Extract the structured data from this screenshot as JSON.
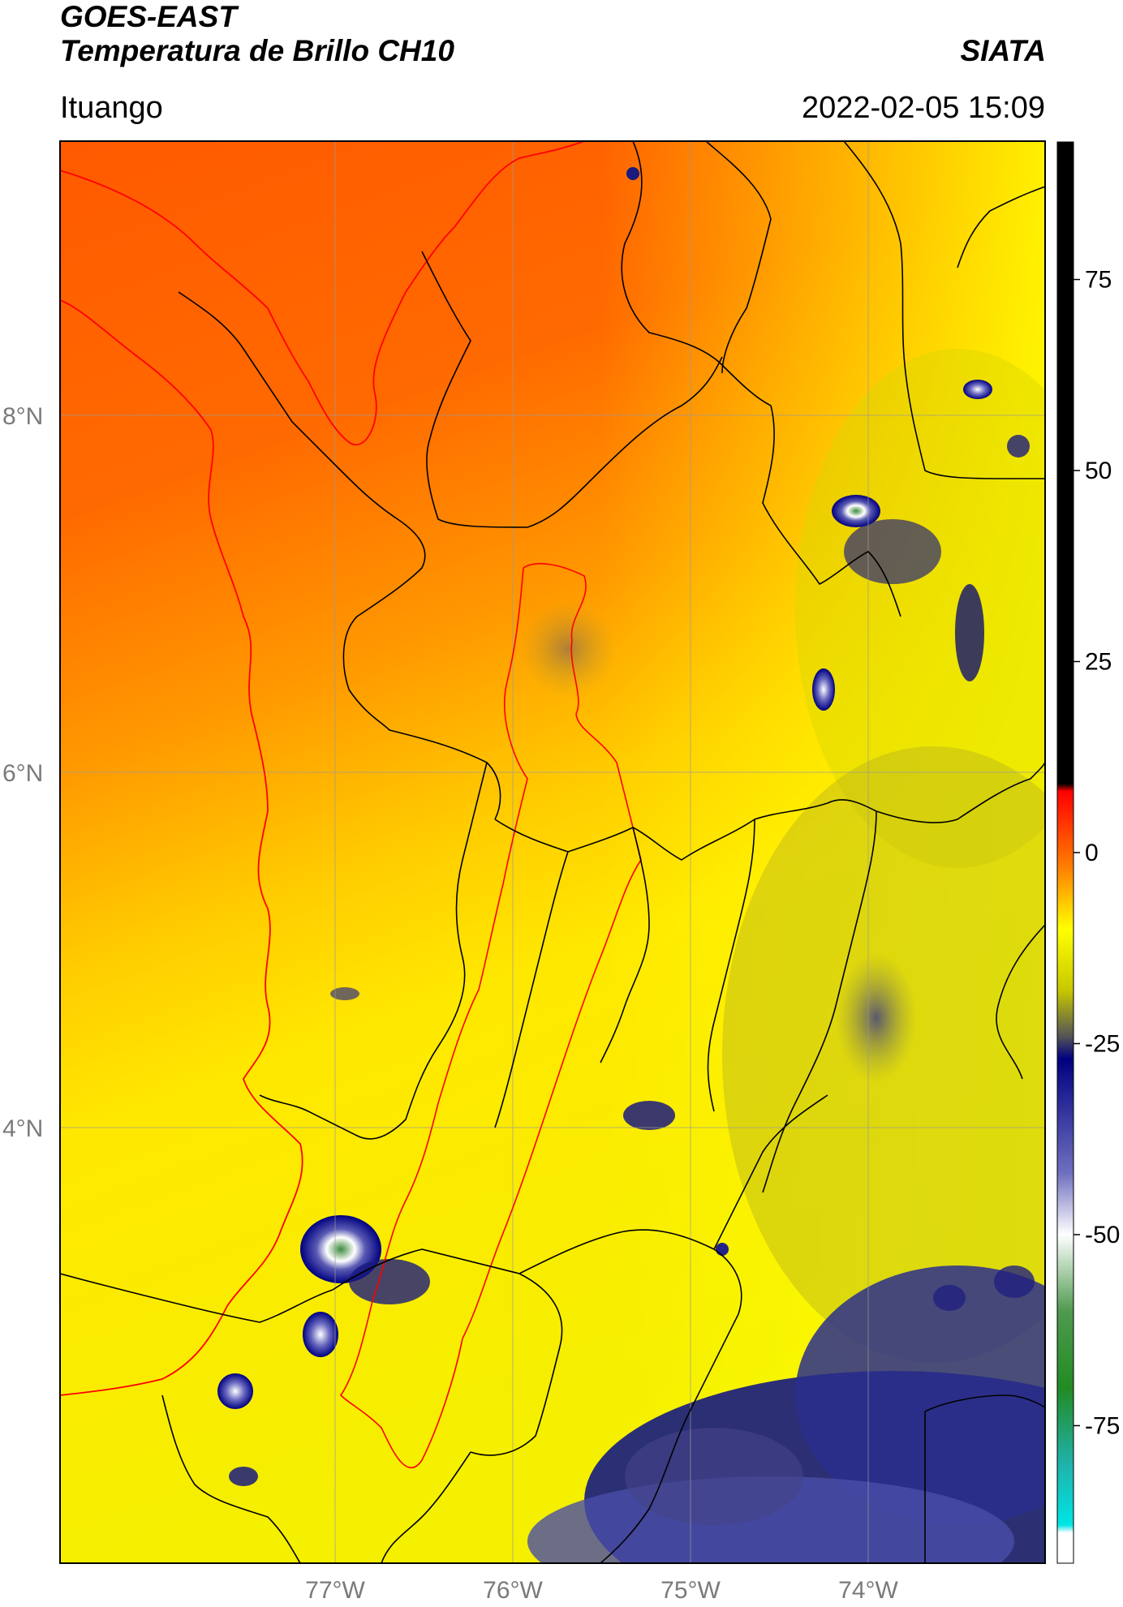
{
  "header": {
    "title_line1": "GOES-EAST",
    "title_line2": "Temperatura de Brillo CH10",
    "brand": "SIATA",
    "location": "Ituango",
    "timestamp": "2022-02-05 15:09"
  },
  "map": {
    "lat_ticks": [
      "8°N",
      "6°N",
      "4°N"
    ],
    "lon_ticks": [
      "77°W",
      "76°W",
      "75°W",
      "74°W"
    ],
    "colors": {
      "border_lines": "#000000",
      "coast_and_watershed": "#ff0000",
      "gridlines": "#999999"
    }
  },
  "colorbar": {
    "ticks": [
      "75",
      "50",
      "25",
      "0",
      "-25",
      "-50",
      "-75"
    ],
    "tick_values": [
      75,
      50,
      25,
      0,
      -25,
      -50,
      -75
    ],
    "range": [
      -93,
      93
    ],
    "stops": [
      {
        "v": 93,
        "c": "#000000"
      },
      {
        "v": 9,
        "c": "#000000"
      },
      {
        "v": 8,
        "c": "#ff0000"
      },
      {
        "v": -2,
        "c": "#ff8000"
      },
      {
        "v": -10,
        "c": "#ffff00"
      },
      {
        "v": -18,
        "c": "#c8c800"
      },
      {
        "v": -24,
        "c": "#555555"
      },
      {
        "v": -27,
        "c": "#000080"
      },
      {
        "v": -42,
        "c": "#7070c0"
      },
      {
        "v": -50,
        "c": "#ffffff"
      },
      {
        "v": -60,
        "c": "#4f9a4f"
      },
      {
        "v": -70,
        "c": "#228b22"
      },
      {
        "v": -80,
        "c": "#20b2aa"
      },
      {
        "v": -88,
        "c": "#00e5e5"
      },
      {
        "v": -89,
        "c": "#ffffff"
      },
      {
        "v": -93,
        "c": "#ffffff"
      }
    ]
  }
}
